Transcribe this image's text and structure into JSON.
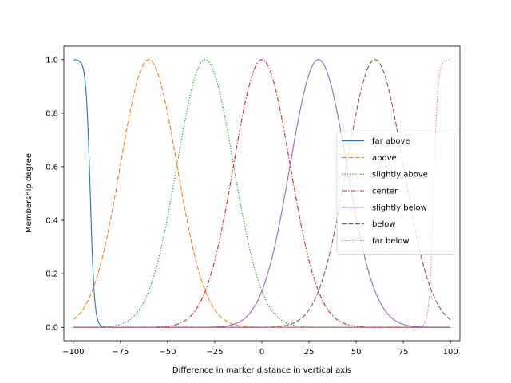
{
  "chart_data": {
    "type": "line",
    "title": "",
    "xlabel": "Difference in marker distance in vertical axis",
    "ylabel": "Membership degree",
    "xlim": [
      -105,
      105
    ],
    "ylim": [
      -0.05,
      1.05
    ],
    "xticks": [
      -100,
      -75,
      -50,
      -25,
      0,
      25,
      50,
      75,
      100
    ],
    "xtick_labels": [
      "−100",
      "−75",
      "−50",
      "−25",
      "0",
      "25",
      "50",
      "75",
      "100"
    ],
    "yticks": [
      0.0,
      0.2,
      0.4,
      0.6,
      0.8,
      1.0
    ],
    "ytick_labels": [
      "0.0",
      "0.2",
      "0.4",
      "0.6",
      "0.8",
      "1.0"
    ],
    "grid": false,
    "legend_position": "center-right",
    "x_range": [
      -100,
      100
    ],
    "series": [
      {
        "name": "far above",
        "shape": "sigmoid-decreasing",
        "center": -91,
        "steepness": 0.9,
        "color": "#1f77b4",
        "dash": ""
      },
      {
        "name": "above",
        "shape": "gaussian",
        "center": -60,
        "sigma": 15,
        "color": "#ff7f0e",
        "dash": "6,2.5"
      },
      {
        "name": "slightly above",
        "shape": "gaussian",
        "center": -30,
        "sigma": 15,
        "color": "#2ca02c",
        "dash": "1.5,1.8"
      },
      {
        "name": "center",
        "shape": "gaussian",
        "center": 0,
        "sigma": 15,
        "color": "#d62728",
        "dash": "6,2,1.5,2"
      },
      {
        "name": "slightly below",
        "shape": "gaussian",
        "center": 30,
        "sigma": 15,
        "color": "#9467bd",
        "dash": ""
      },
      {
        "name": "below",
        "shape": "gaussian",
        "center": 60,
        "sigma": 15,
        "color": "#8c564b",
        "dash": "6,2.5"
      },
      {
        "name": "far below",
        "shape": "sigmoid-increasing",
        "center": 91,
        "steepness": 0.9,
        "color": "#e377c2",
        "dash": "1.5,1.8"
      }
    ]
  }
}
